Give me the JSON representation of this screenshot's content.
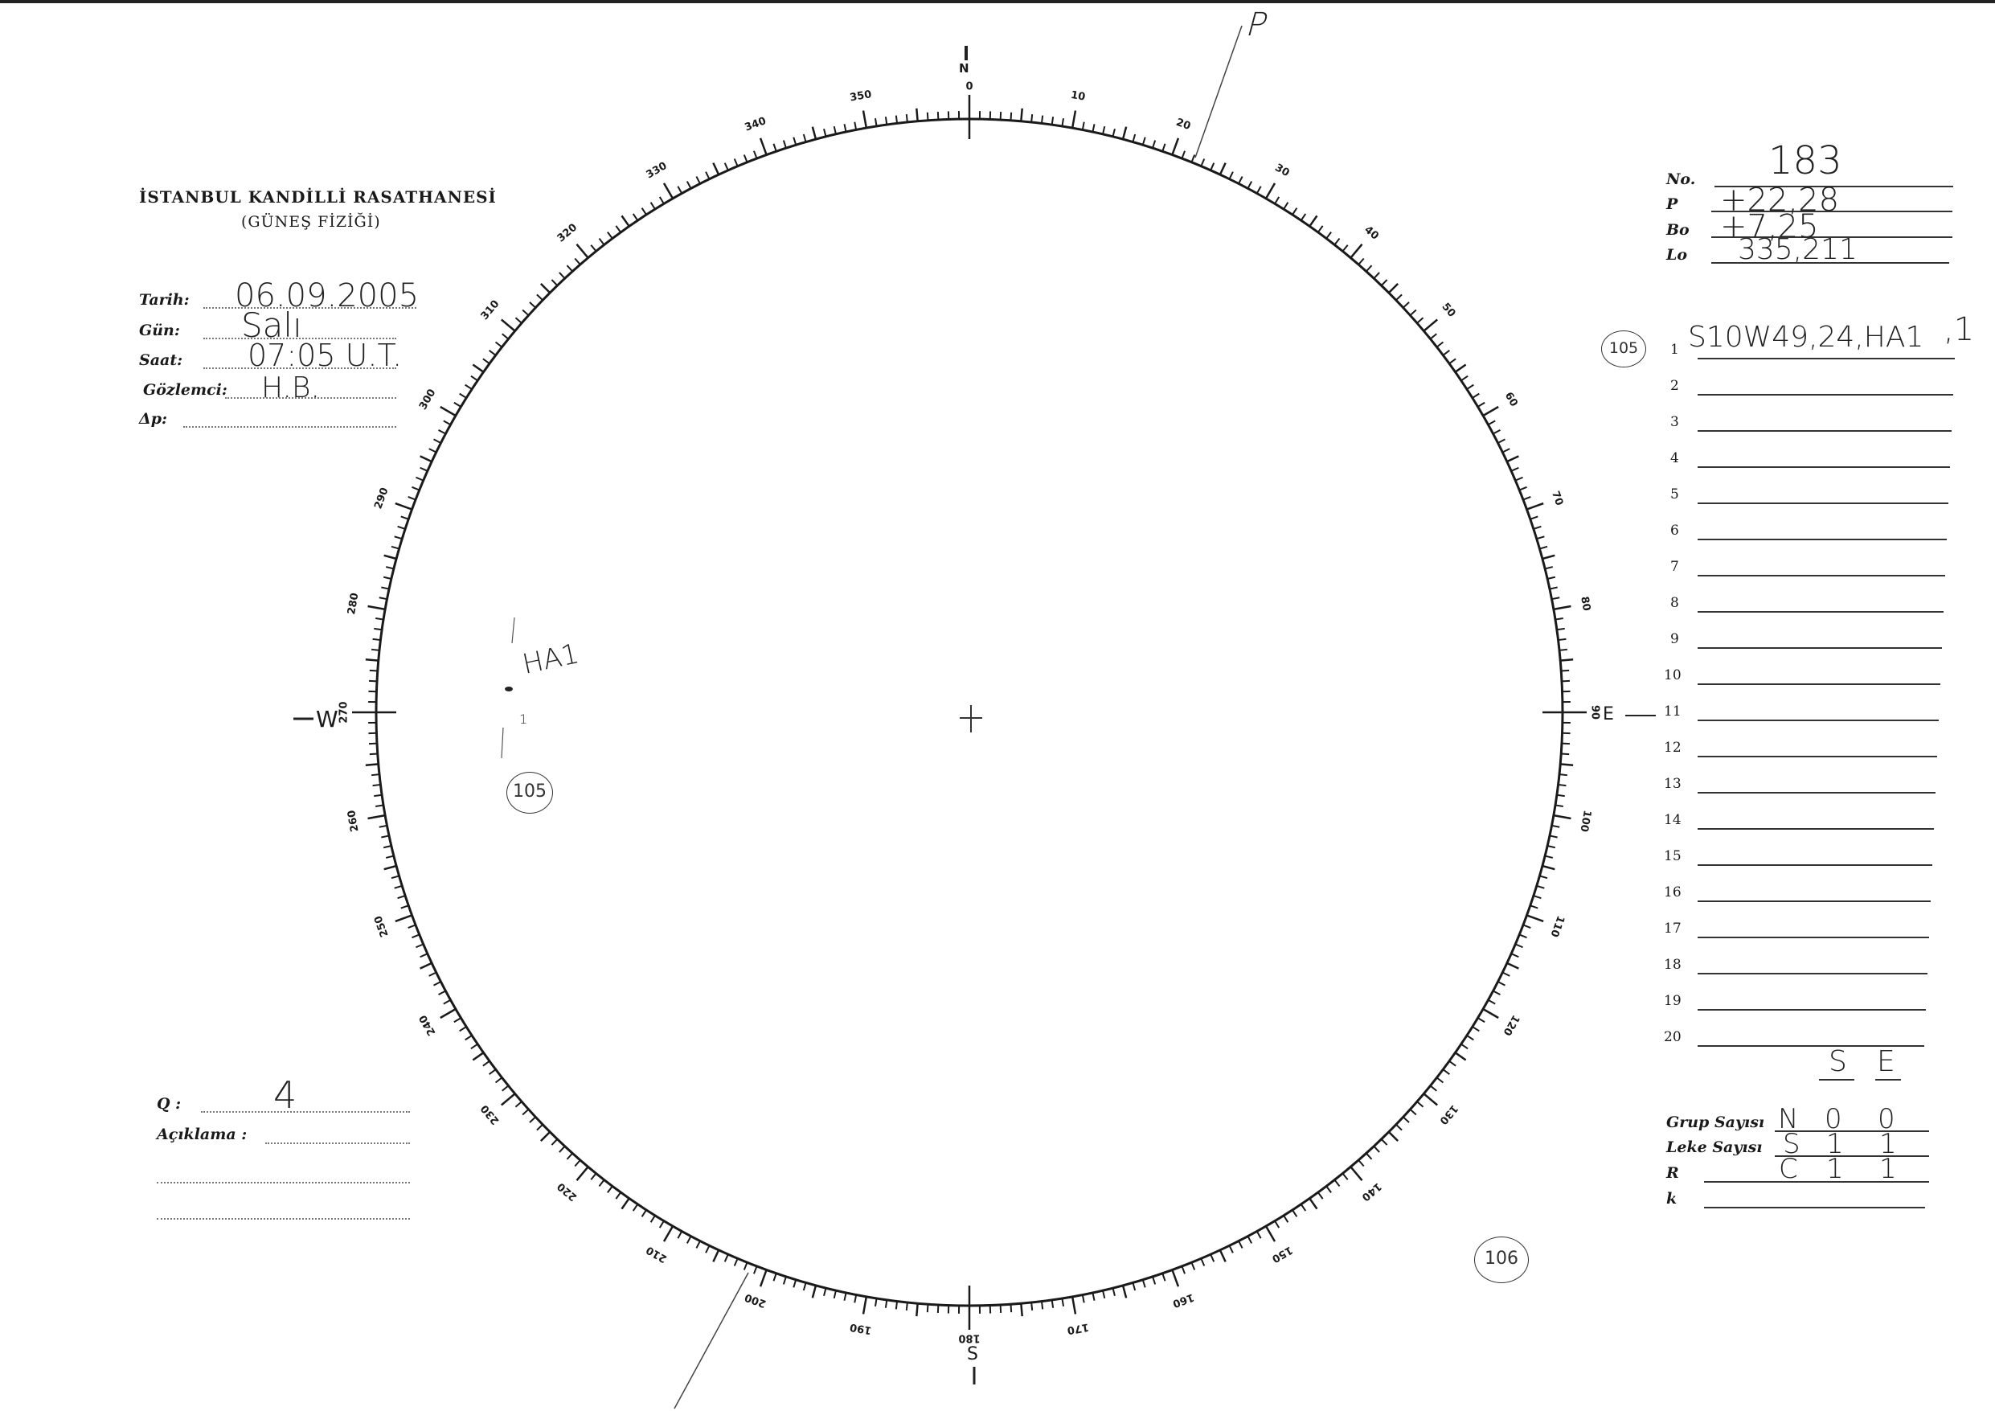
{
  "header": {
    "institution": "İSTANBUL KANDİLLİ RASATHANESİ",
    "department": "(GÜNEŞ FİZİĞİ)"
  },
  "observation": {
    "date_label": "Tarih:",
    "date_value": "06.09.2005",
    "day_label": "Gün:",
    "day_value": "Salı",
    "time_label": "Saat:",
    "time_value": "07:05 U.T.",
    "observer_label": "Gözlemci:",
    "observer_value": "H.B.",
    "delta_p_label": "Δp:",
    "delta_p_value": ""
  },
  "quality": {
    "q_label": "Q :",
    "q_value": "4",
    "remarks_label": "Açıklama :",
    "remarks_value": ""
  },
  "ephemeris": {
    "no_label": "No.",
    "no_value": "183",
    "p_label": "P",
    "p_value": "+22,28",
    "bo_label": "Bo",
    "bo_value": "+7,25",
    "lo_label": "Lo",
    "lo_value": "335,211"
  },
  "groups": {
    "circled_number": "105",
    "rows": [
      {
        "n": "1",
        "value": "S10W49,24,HA1",
        "suffix": ",1"
      },
      {
        "n": "2",
        "value": ""
      },
      {
        "n": "3",
        "value": ""
      },
      {
        "n": "4",
        "value": ""
      },
      {
        "n": "5",
        "value": ""
      },
      {
        "n": "6",
        "value": ""
      },
      {
        "n": "7",
        "value": ""
      },
      {
        "n": "8",
        "value": ""
      },
      {
        "n": "9",
        "value": ""
      },
      {
        "n": "10",
        "value": ""
      },
      {
        "n": "11",
        "value": ""
      },
      {
        "n": "12",
        "value": ""
      },
      {
        "n": "13",
        "value": ""
      },
      {
        "n": "14",
        "value": ""
      },
      {
        "n": "15",
        "value": ""
      },
      {
        "n": "16",
        "value": ""
      },
      {
        "n": "17",
        "value": ""
      },
      {
        "n": "18",
        "value": ""
      },
      {
        "n": "19",
        "value": ""
      },
      {
        "n": "20",
        "value": ""
      }
    ]
  },
  "counts": {
    "col_headers": [
      "S",
      "E"
    ],
    "group_count_label": "Grup Sayısı",
    "group_count": [
      "N",
      "0",
      "0"
    ],
    "spot_count_label": "Leke Sayısı",
    "spot_count": [
      "S",
      "1",
      "1"
    ],
    "r_label": "R",
    "r_values": [
      "C",
      "1",
      "1"
    ],
    "k_label": "k",
    "k_value": ""
  },
  "disk": {
    "cardinals": {
      "north": "N",
      "south": "S",
      "east": "E",
      "west": "W"
    },
    "scale_labels": [
      "0",
      "10",
      "20",
      "30",
      "40",
      "50",
      "60",
      "70",
      "80",
      "90",
      "100",
      "110",
      "120",
      "130",
      "140",
      "150",
      "160",
      "170",
      "180",
      "190",
      "200",
      "210",
      "220",
      "230",
      "240",
      "250",
      "260",
      "270",
      "280",
      "290",
      "300",
      "310",
      "320",
      "330",
      "340",
      "350"
    ],
    "pole_axis_label": "P",
    "sunspot_label": "HA1",
    "sunspot_count_mark": "1",
    "circled_region_west": "105",
    "circled_region_bottom": "106"
  }
}
